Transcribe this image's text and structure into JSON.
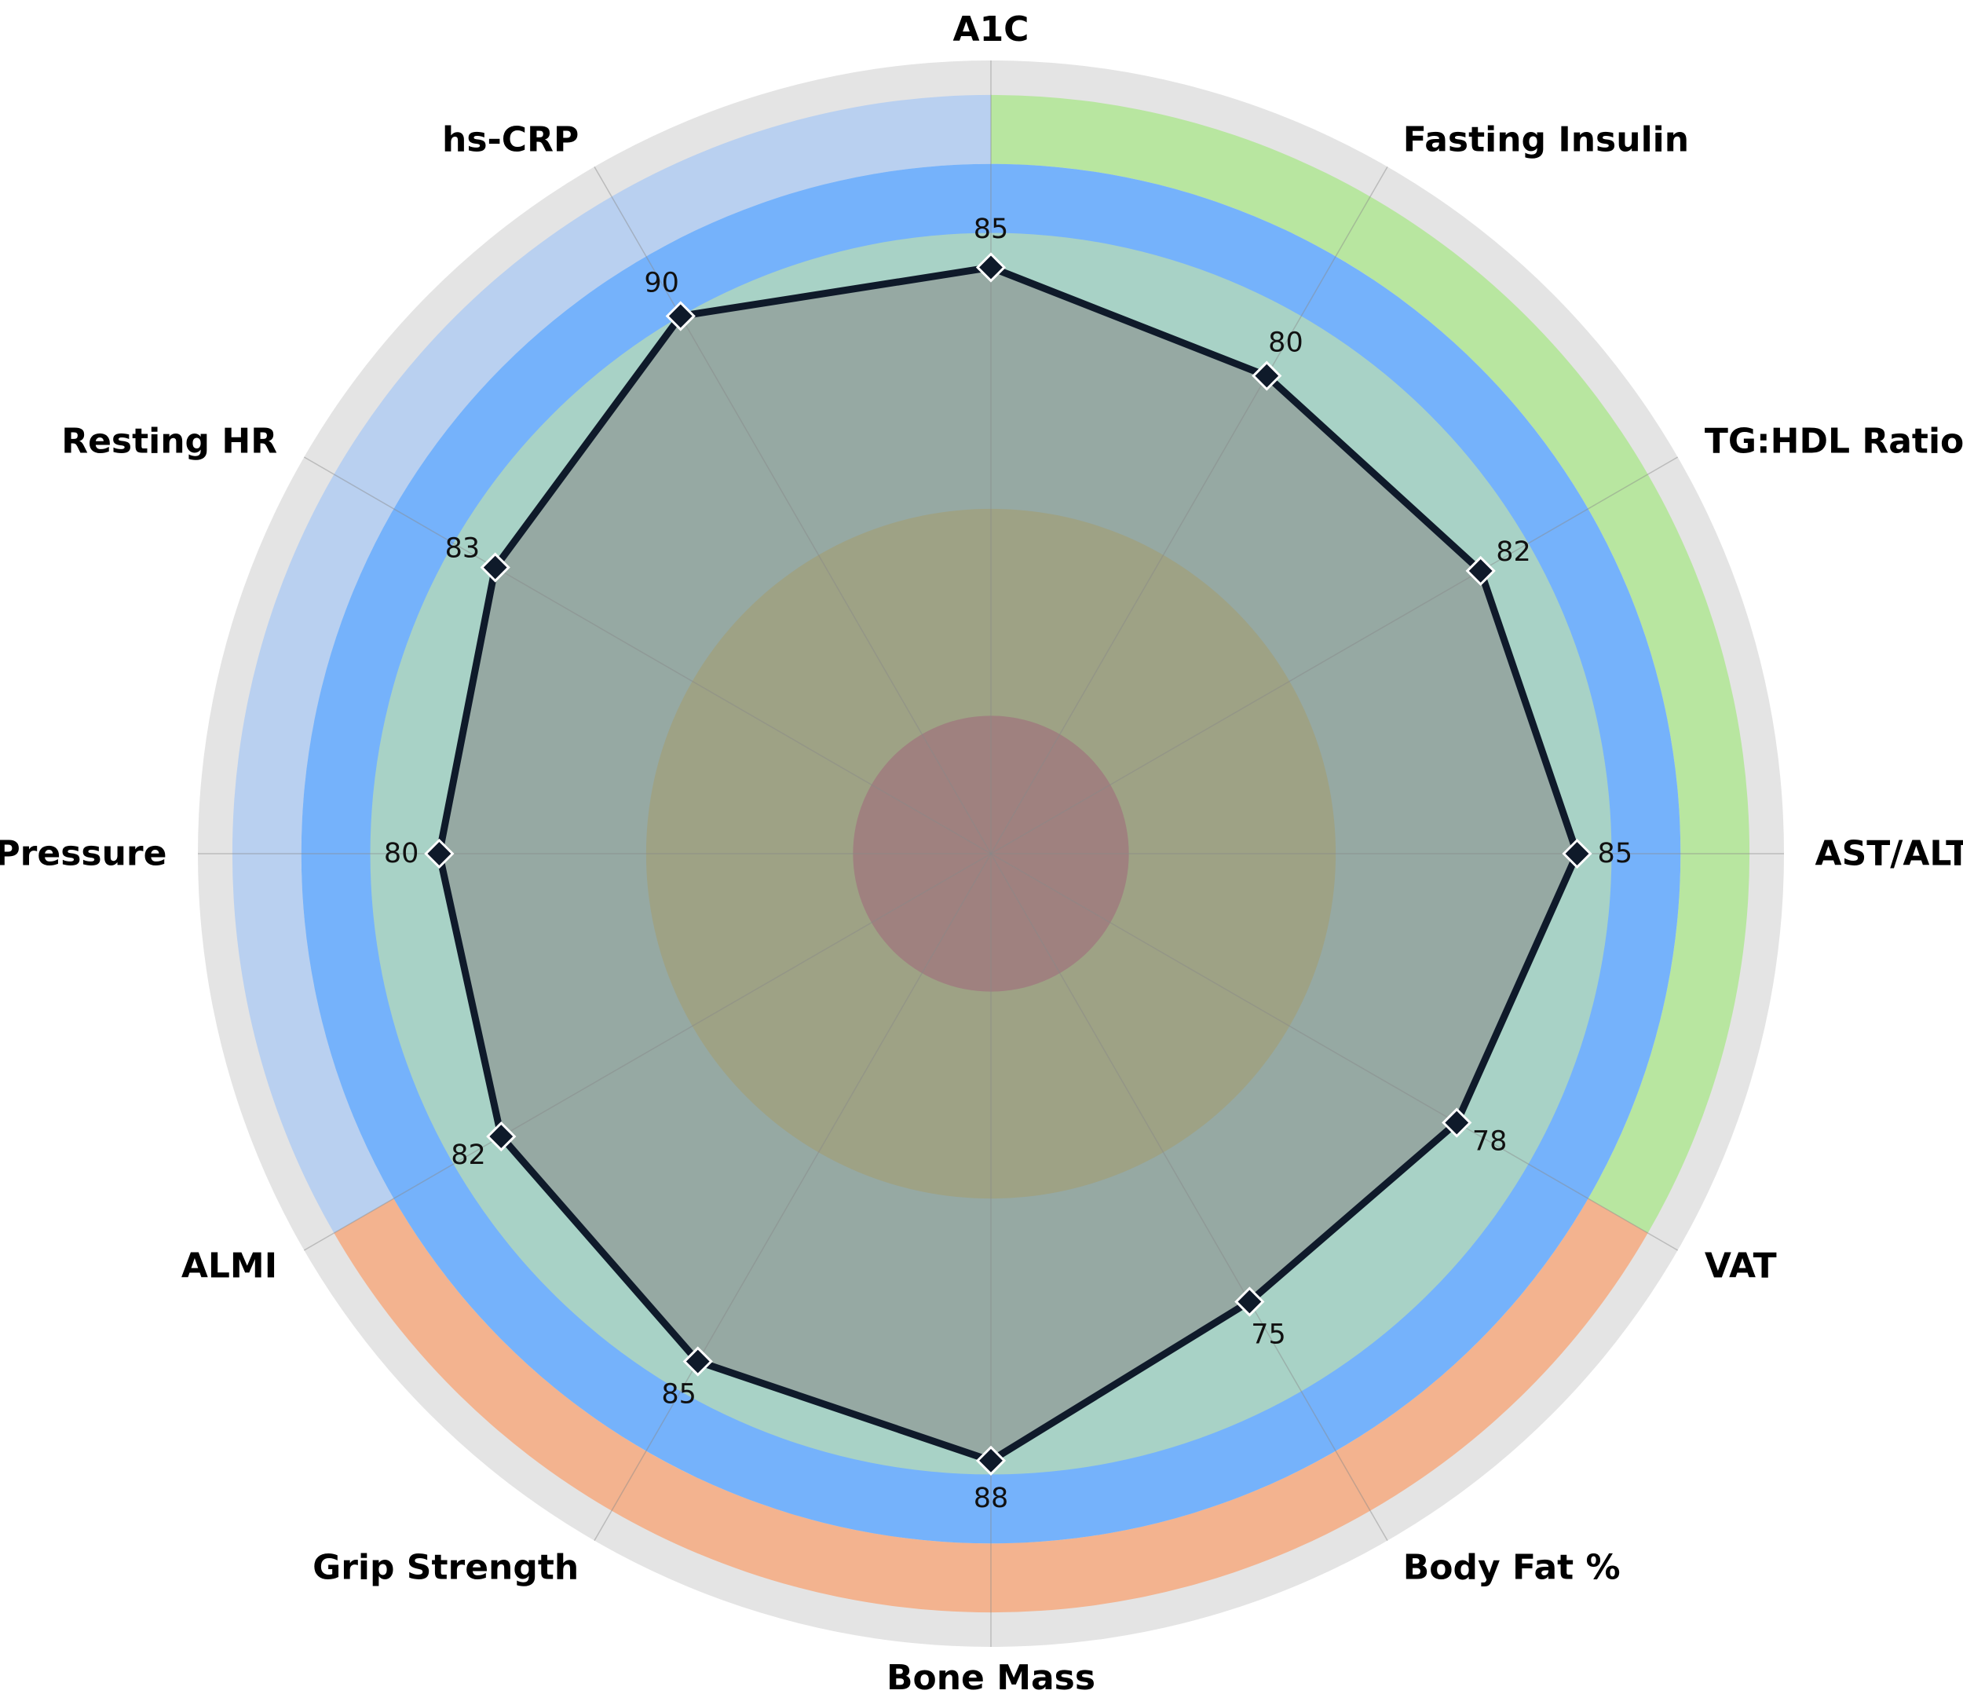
{
  "chart_data": {
    "type": "radar",
    "categories": [
      "A1C",
      "Fasting Insulin",
      "TG:HDL Ratio",
      "AST/ALT Ratio",
      "VAT",
      "Body Fat %",
      "Bone Mass",
      "Grip Strength",
      "ALMI",
      "Blood Pressure",
      "Resting HR",
      "hs-CRP"
    ],
    "values": [
      85,
      80,
      82,
      85,
      78,
      75,
      88,
      85,
      82,
      80,
      83,
      90
    ],
    "rmax": 115,
    "bands": [
      {
        "r": [
          0,
          20
        ],
        "color": "#bc7b77"
      },
      {
        "r": [
          20,
          50
        ],
        "color": "#bac384"
      },
      {
        "r": [
          50,
          90
        ],
        "color": "#a8d2c6"
      },
      {
        "r": [
          90,
          100
        ],
        "color": "#75b2fb"
      }
    ],
    "outer_sectors": [
      {
        "from_category": "A1C",
        "to_category": "VAT",
        "color": "#b8e6a0"
      },
      {
        "from_category": "VAT",
        "to_category": "ALMI",
        "color": "#f3b38f"
      },
      {
        "from_category": "ALMI",
        "to_category": "A1C",
        "color": "#b9d0f0"
      }
    ],
    "outer_sector_r": [
      100,
      110
    ],
    "background_color": "#e4e4e4",
    "fill_color": "#878787",
    "line_color": "#0f1a2a",
    "marker": "diamond",
    "grid": true
  }
}
